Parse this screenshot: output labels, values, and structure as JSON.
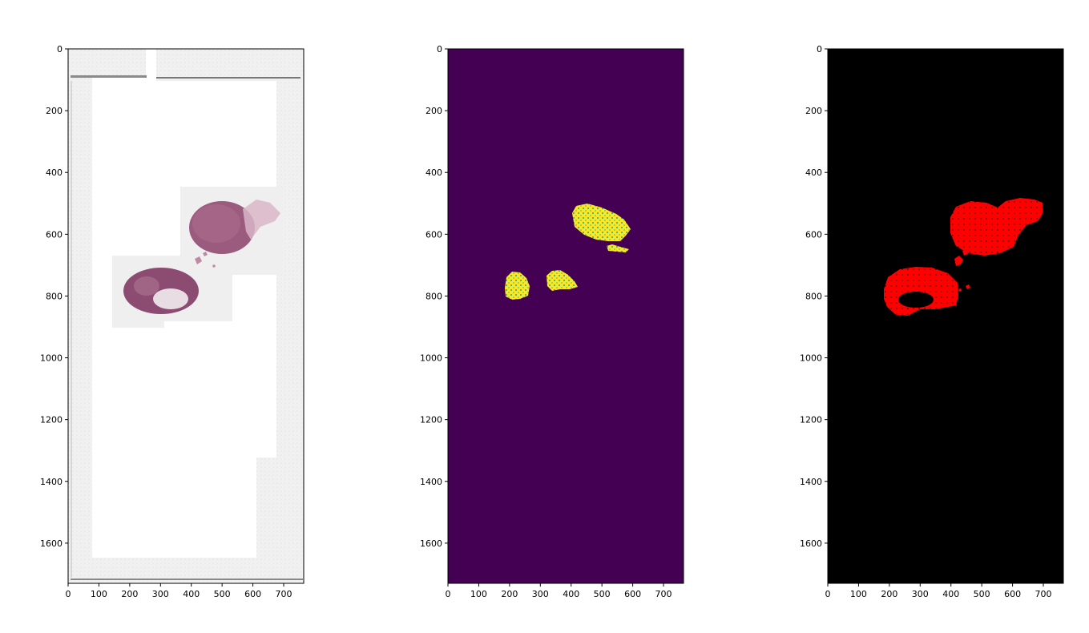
{
  "panels": [
    {
      "content": "histology-slide",
      "colors": {
        "background": "#ffffff",
        "tissue": "#9b5b7e",
        "tissue_dark": "#7a3c63",
        "slide_edge": "#dcdcdc"
      }
    },
    {
      "content": "binary-mask-viridis",
      "colors": {
        "background": "#440154",
        "foreground": "#fde725",
        "edge": "#35b779"
      }
    },
    {
      "content": "binary-mask-red",
      "colors": {
        "background": "#000000",
        "foreground": "#ff0000"
      }
    }
  ],
  "axes": {
    "x_ticks": [
      "0",
      "100",
      "200",
      "300",
      "400",
      "500",
      "600",
      "700"
    ],
    "y_ticks": [
      "0",
      "200",
      "400",
      "600",
      "800",
      "1000",
      "1200",
      "1400",
      "1600"
    ],
    "x_range": [
      0,
      765
    ],
    "y_range": [
      1730,
      0
    ]
  }
}
